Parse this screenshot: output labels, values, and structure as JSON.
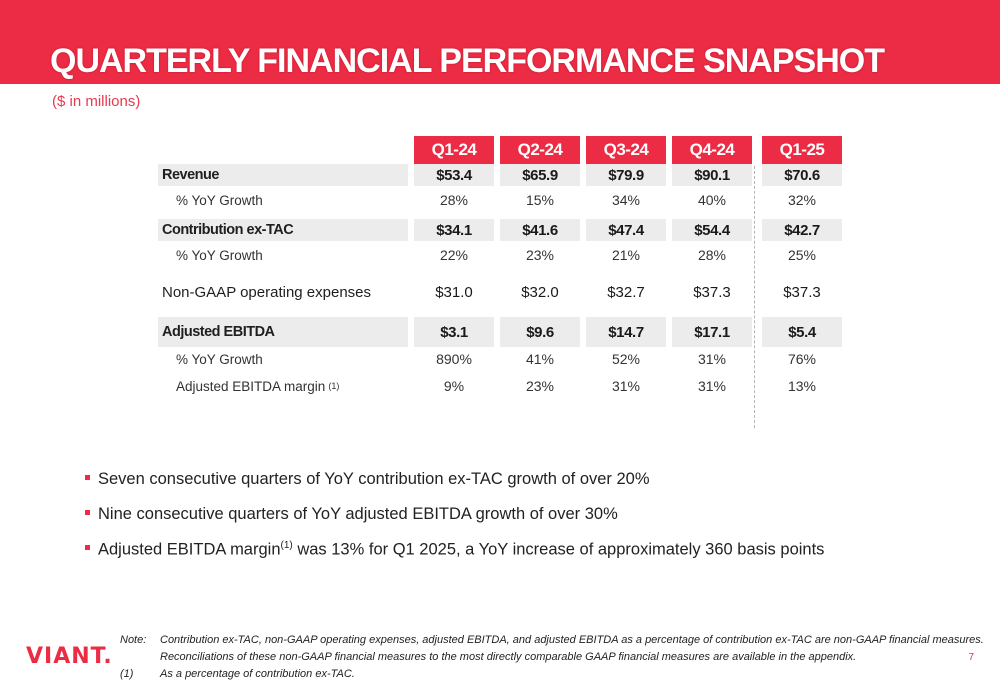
{
  "title": "QUARTERLY FINANCIAL PERFORMANCE SNAPSHOT",
  "subtitle": "($ in millions)",
  "columns": [
    "Q1-24",
    "Q2-24",
    "Q3-24",
    "Q4-24",
    "Q1-25"
  ],
  "rows": [
    {
      "label": "Revenue",
      "values": [
        "$53.4",
        "$65.9",
        "$79.9",
        "$90.1",
        "$70.6"
      ]
    },
    {
      "label": "% YoY Growth",
      "values": [
        "28%",
        "15%",
        "34%",
        "40%",
        "32%"
      ]
    },
    {
      "label": "Contribution ex-TAC",
      "values": [
        "$34.1",
        "$41.6",
        "$47.4",
        "$54.4",
        "$42.7"
      ]
    },
    {
      "label": "% YoY Growth",
      "values": [
        "22%",
        "23%",
        "21%",
        "28%",
        "25%"
      ]
    },
    {
      "label": "Non-GAAP operating expenses",
      "values": [
        "$31.0",
        "$32.0",
        "$32.7",
        "$37.3",
        "$37.3"
      ]
    },
    {
      "label": "Adjusted EBITDA",
      "values": [
        "$3.1",
        "$9.6",
        "$14.7",
        "$17.1",
        "$5.4"
      ]
    },
    {
      "label": "% YoY Growth",
      "values": [
        "890%",
        "41%",
        "52%",
        "31%",
        "76%"
      ]
    },
    {
      "label": "Adjusted EBITDA margin",
      "label_sup": "(1)",
      "values": [
        "9%",
        "23%",
        "31%",
        "31%",
        "13%"
      ]
    }
  ],
  "bullets": [
    {
      "text": "Seven consecutive quarters of YoY contribution ex-TAC growth of over 20%"
    },
    {
      "text": "Nine consecutive quarters of YoY adjusted EBITDA growth of over 30%"
    },
    {
      "text_before": "Adjusted EBITDA margin",
      "sup": "(1)",
      "text_after": " was 13% for Q1 2025, a YoY increase of approximately 360 basis points"
    }
  ],
  "footer": {
    "logo": "VIANT.",
    "note_label": "Note:",
    "note_line1": "Contribution ex-TAC, non-GAAP operating expenses, adjusted EBITDA, and adjusted EBITDA as a percentage of contribution ex-TAC are non-GAAP financial measures.",
    "note_line2": "Reconciliations of these non-GAAP financial measures to the most directly comparable GAAP financial measures are available in the appendix.",
    "footnote_label": "(1)",
    "footnote_text": "As a percentage of contribution ex-TAC.",
    "page_number": "7"
  },
  "colors": {
    "accent": "#ec2c44",
    "row_shade": "#ececec"
  }
}
